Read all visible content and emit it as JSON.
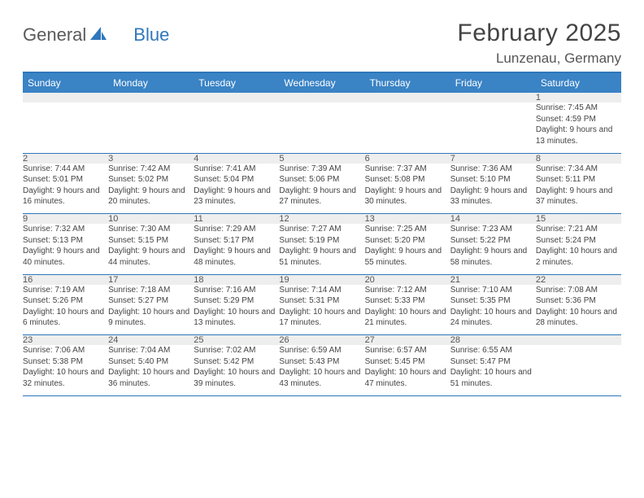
{
  "logo": {
    "text1": "General",
    "text2": "Blue"
  },
  "title": "February 2025",
  "location": "Lunzenau, Germany",
  "colors": {
    "header_bg": "#3a83c5",
    "accent": "#2f77bb",
    "daynum_bg": "#eeeeee",
    "text": "#444444",
    "logo_gray": "#5a5a5a",
    "logo_blue": "#2f77bb"
  },
  "day_headers": [
    "Sunday",
    "Monday",
    "Tuesday",
    "Wednesday",
    "Thursday",
    "Friday",
    "Saturday"
  ],
  "weeks": [
    [
      null,
      null,
      null,
      null,
      null,
      null,
      {
        "n": "1",
        "sunrise": "7:45 AM",
        "sunset": "4:59 PM",
        "daylight": "9 hours and 13 minutes."
      }
    ],
    [
      {
        "n": "2",
        "sunrise": "7:44 AM",
        "sunset": "5:01 PM",
        "daylight": "9 hours and 16 minutes."
      },
      {
        "n": "3",
        "sunrise": "7:42 AM",
        "sunset": "5:02 PM",
        "daylight": "9 hours and 20 minutes."
      },
      {
        "n": "4",
        "sunrise": "7:41 AM",
        "sunset": "5:04 PM",
        "daylight": "9 hours and 23 minutes."
      },
      {
        "n": "5",
        "sunrise": "7:39 AM",
        "sunset": "5:06 PM",
        "daylight": "9 hours and 27 minutes."
      },
      {
        "n": "6",
        "sunrise": "7:37 AM",
        "sunset": "5:08 PM",
        "daylight": "9 hours and 30 minutes."
      },
      {
        "n": "7",
        "sunrise": "7:36 AM",
        "sunset": "5:10 PM",
        "daylight": "9 hours and 33 minutes."
      },
      {
        "n": "8",
        "sunrise": "7:34 AM",
        "sunset": "5:11 PM",
        "daylight": "9 hours and 37 minutes."
      }
    ],
    [
      {
        "n": "9",
        "sunrise": "7:32 AM",
        "sunset": "5:13 PM",
        "daylight": "9 hours and 40 minutes."
      },
      {
        "n": "10",
        "sunrise": "7:30 AM",
        "sunset": "5:15 PM",
        "daylight": "9 hours and 44 minutes."
      },
      {
        "n": "11",
        "sunrise": "7:29 AM",
        "sunset": "5:17 PM",
        "daylight": "9 hours and 48 minutes."
      },
      {
        "n": "12",
        "sunrise": "7:27 AM",
        "sunset": "5:19 PM",
        "daylight": "9 hours and 51 minutes."
      },
      {
        "n": "13",
        "sunrise": "7:25 AM",
        "sunset": "5:20 PM",
        "daylight": "9 hours and 55 minutes."
      },
      {
        "n": "14",
        "sunrise": "7:23 AM",
        "sunset": "5:22 PM",
        "daylight": "9 hours and 58 minutes."
      },
      {
        "n": "15",
        "sunrise": "7:21 AM",
        "sunset": "5:24 PM",
        "daylight": "10 hours and 2 minutes."
      }
    ],
    [
      {
        "n": "16",
        "sunrise": "7:19 AM",
        "sunset": "5:26 PM",
        "daylight": "10 hours and 6 minutes."
      },
      {
        "n": "17",
        "sunrise": "7:18 AM",
        "sunset": "5:27 PM",
        "daylight": "10 hours and 9 minutes."
      },
      {
        "n": "18",
        "sunrise": "7:16 AM",
        "sunset": "5:29 PM",
        "daylight": "10 hours and 13 minutes."
      },
      {
        "n": "19",
        "sunrise": "7:14 AM",
        "sunset": "5:31 PM",
        "daylight": "10 hours and 17 minutes."
      },
      {
        "n": "20",
        "sunrise": "7:12 AM",
        "sunset": "5:33 PM",
        "daylight": "10 hours and 21 minutes."
      },
      {
        "n": "21",
        "sunrise": "7:10 AM",
        "sunset": "5:35 PM",
        "daylight": "10 hours and 24 minutes."
      },
      {
        "n": "22",
        "sunrise": "7:08 AM",
        "sunset": "5:36 PM",
        "daylight": "10 hours and 28 minutes."
      }
    ],
    [
      {
        "n": "23",
        "sunrise": "7:06 AM",
        "sunset": "5:38 PM",
        "daylight": "10 hours and 32 minutes."
      },
      {
        "n": "24",
        "sunrise": "7:04 AM",
        "sunset": "5:40 PM",
        "daylight": "10 hours and 36 minutes."
      },
      {
        "n": "25",
        "sunrise": "7:02 AM",
        "sunset": "5:42 PM",
        "daylight": "10 hours and 39 minutes."
      },
      {
        "n": "26",
        "sunrise": "6:59 AM",
        "sunset": "5:43 PM",
        "daylight": "10 hours and 43 minutes."
      },
      {
        "n": "27",
        "sunrise": "6:57 AM",
        "sunset": "5:45 PM",
        "daylight": "10 hours and 47 minutes."
      },
      {
        "n": "28",
        "sunrise": "6:55 AM",
        "sunset": "5:47 PM",
        "daylight": "10 hours and 51 minutes."
      },
      null
    ]
  ],
  "labels": {
    "sunrise": "Sunrise:",
    "sunset": "Sunset:",
    "daylight": "Daylight:"
  }
}
